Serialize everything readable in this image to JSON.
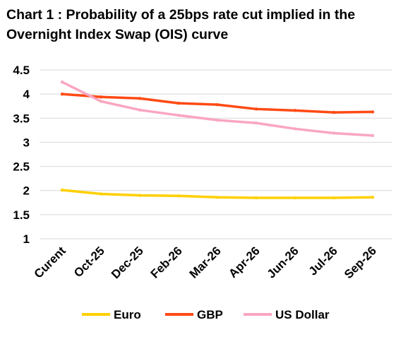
{
  "chart_data": {
    "type": "line",
    "title": "Chart 1 : Probability of a 25bps rate cut implied in the Overnight Index Swap (OIS) curve",
    "xlabel": "",
    "ylabel": "",
    "categories": [
      "Curent",
      "Oct-25",
      "Dec-25",
      "Feb-26",
      "Mar-26",
      "Apr-26",
      "Jun-26",
      "Jul-26",
      "Sep-26"
    ],
    "ylim": [
      1,
      4.5
    ],
    "yticks": [
      "1",
      "1.5",
      "2",
      "2.5",
      "3",
      "3.5",
      "4",
      "4.5"
    ],
    "grid": true,
    "legend_position": "bottom",
    "series": [
      {
        "name": "Euro",
        "color": "#FFD000",
        "values": [
          2.01,
          1.93,
          1.9,
          1.89,
          1.86,
          1.85,
          1.85,
          1.85,
          1.86
        ]
      },
      {
        "name": "GBP",
        "color": "#FF4A14",
        "values": [
          4.0,
          3.94,
          3.91,
          3.81,
          3.78,
          3.69,
          3.66,
          3.62,
          3.63
        ]
      },
      {
        "name": "US Dollar",
        "color": "#F9A6C1",
        "values": [
          4.25,
          3.85,
          3.67,
          3.56,
          3.46,
          3.4,
          3.28,
          3.19,
          3.14
        ]
      }
    ]
  }
}
